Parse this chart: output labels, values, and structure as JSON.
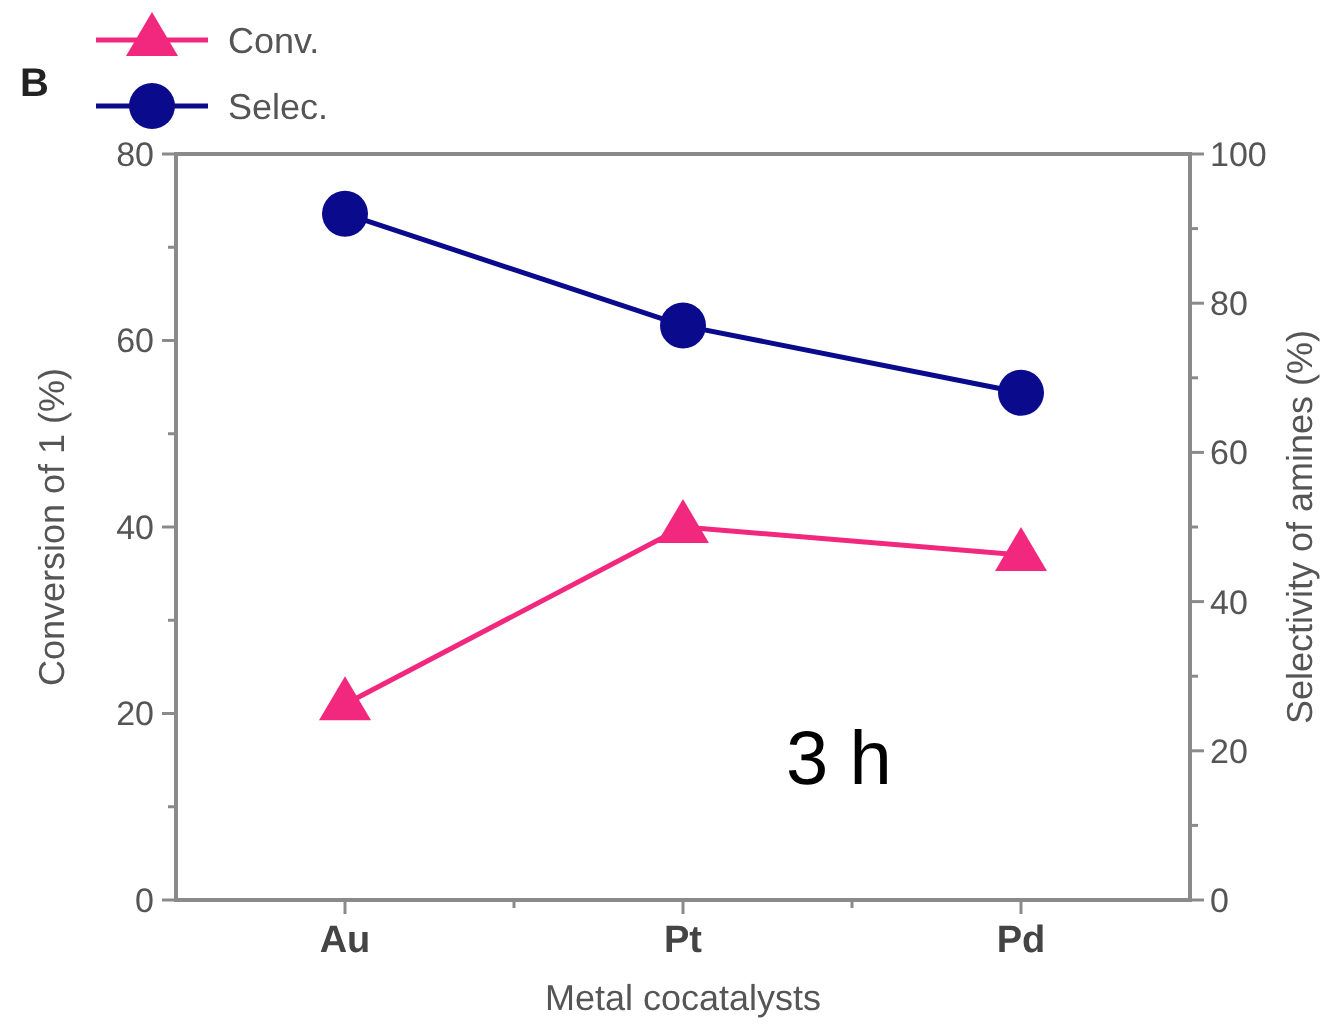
{
  "chart_data": {
    "type": "line",
    "categories": [
      "Au",
      "Pt",
      "Pd"
    ],
    "xlabel": "Metal cocatalysts",
    "ylabel": "Conversion of 1 (%)",
    "y2label": "Selectivity of amines (%)",
    "ylim": [
      0,
      80
    ],
    "yticks": [
      0,
      {
        "value": 10,
        "label": null
      },
      20,
      {
        "value": 30,
        "label": null
      },
      40,
      {
        "value": 50,
        "label": null
      },
      60,
      {
        "value": 70,
        "label": null
      },
      80
    ],
    "y2lim": [
      0,
      100
    ],
    "y2ticks": [
      0,
      {
        "value": 10,
        "label": null
      },
      20,
      {
        "value": 30,
        "label": null
      },
      40,
      {
        "value": 50,
        "label": null
      },
      60,
      {
        "value": 70,
        "label": null
      },
      80,
      {
        "value": 90,
        "label": null
      },
      100
    ],
    "series": [
      {
        "name": "Conv.",
        "color": "#f2287e",
        "values": [
          21,
          40,
          37
        ],
        "marker": "triangle"
      },
      {
        "name": "Selec.",
        "color": "#0a0a8c",
        "values": [
          92,
          77,
          68
        ],
        "axis": "y2",
        "marker": "circle"
      }
    ],
    "legend": "top left",
    "grid": false,
    "line_style": "solid",
    "annotations": [
      "B",
      "3 h"
    ]
  }
}
